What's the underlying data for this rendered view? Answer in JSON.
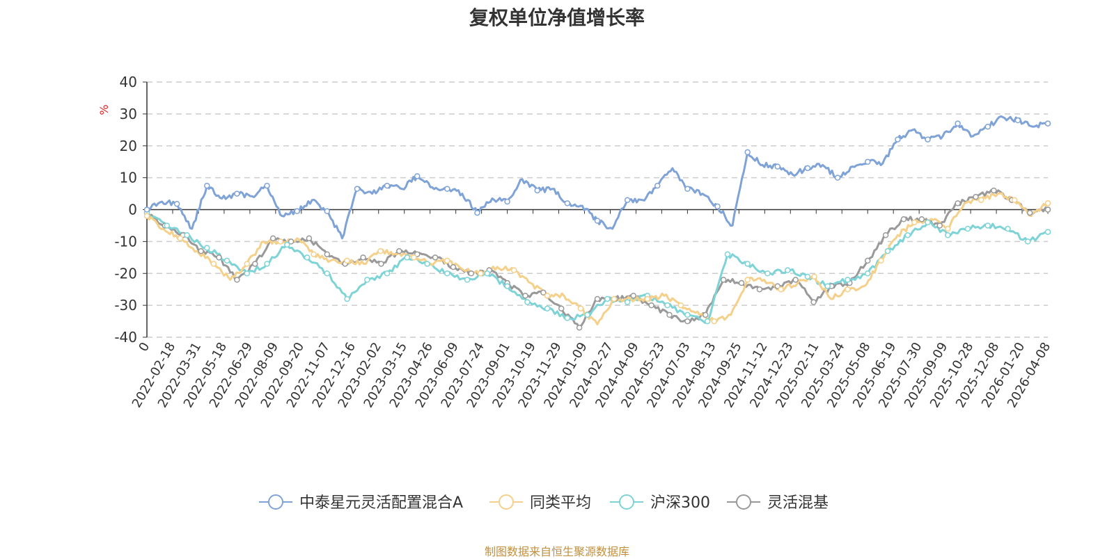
{
  "chart_data": {
    "type": "line",
    "title": "复权单位净值增长率",
    "ylabel": "%",
    "xlabel": "",
    "ylim": [
      -40,
      40
    ],
    "yticks": [
      40,
      30,
      20,
      10,
      0,
      -10,
      -20,
      -30,
      -40
    ],
    "x_tick_labels": [
      "0",
      "2022-02-18",
      "2022-03-31",
      "2022-05-18",
      "2022-06-29",
      "2022-08-09",
      "2022-09-20",
      "2022-11-07",
      "2022-12-16",
      "2023-02-02",
      "2023-03-15",
      "2023-04-26",
      "2023-06-09",
      "2023-07-24",
      "2023-09-01",
      "2023-10-19",
      "2023-11-29",
      "2024-01-09",
      "2024-02-27",
      "2024-04-09",
      "2024-05-23",
      "2024-07-03",
      "2024-08-13",
      "2024-09-25",
      "2024-11-12",
      "2024-12-23",
      "2025-02-11",
      "2025-03-24",
      "2025-05-08",
      "2025-06-19",
      "2025-07-30",
      "2025-09-09",
      "2025-10-28",
      "2025-12-08",
      "2026-01-20",
      "2026-04-08"
    ],
    "grid": true,
    "legend_position": "bottom",
    "series": [
      {
        "name": "中泰星元灵活配置混合A",
        "color": "#7fa3d6",
        "values": [
          0,
          2.5,
          1.8,
          -6,
          7.5,
          3.5,
          5,
          4.2,
          7.5,
          -2,
          -0.5,
          3,
          -0.5,
          -9,
          6.5,
          5,
          7.5,
          6.5,
          10.5,
          7,
          6.5,
          5,
          -1,
          3.5,
          2.5,
          9.5,
          6,
          6.5,
          2,
          1.2,
          -3.5,
          -6,
          3,
          3,
          7.5,
          13,
          6.5,
          5,
          1,
          -5,
          18,
          14,
          13.5,
          11,
          13,
          14,
          10,
          13.5,
          15,
          14.5,
          22,
          25,
          22,
          23,
          27,
          23,
          26,
          29,
          28,
          26,
          27
        ]
      },
      {
        "name": "同类平均",
        "color": "#f5d08a",
        "values": [
          -2,
          -6,
          -9,
          -13,
          -17,
          -22,
          -17,
          -10,
          -10,
          -9,
          -14,
          -16,
          -16,
          -17,
          -13,
          -14,
          -15,
          -17,
          -16,
          -19,
          -20,
          -18,
          -19,
          -23,
          -27,
          -27,
          -31,
          -36,
          -28,
          -28,
          -28,
          -27,
          -30,
          -32,
          -35,
          -33,
          -22,
          -22,
          -25,
          -23,
          -21,
          -28,
          -25,
          -24,
          -16,
          -8,
          -4,
          -3,
          -6,
          2,
          3,
          5,
          3,
          -2,
          2
        ]
      },
      {
        "name": "沪深300",
        "color": "#7dd3d6",
        "values": [
          -1,
          -5,
          -8,
          -12,
          -16,
          -20,
          -17,
          -11,
          -15,
          -20,
          -28,
          -22,
          -20,
          -15,
          -17,
          -20,
          -22,
          -20,
          -24,
          -29,
          -31,
          -34,
          -33,
          -28,
          -29,
          -27,
          -30,
          -33,
          -35,
          -14,
          -17,
          -20,
          -19,
          -21,
          -24,
          -22,
          -20,
          -13,
          -8,
          -4,
          -8,
          -6,
          -5,
          -6,
          -10,
          -7
        ]
      },
      {
        "name": "灵活混基",
        "color": "#999999",
        "values": [
          -1,
          -5,
          -8,
          -13,
          -15,
          -22,
          -17,
          -9,
          -10,
          -9,
          -14,
          -17,
          -15,
          -17,
          -13,
          -14,
          -15,
          -18,
          -20,
          -19,
          -23,
          -27,
          -26,
          -31,
          -37,
          -28,
          -28,
          -27,
          -30,
          -33,
          -35,
          -33,
          -22,
          -23,
          -25,
          -24,
          -22,
          -29,
          -24,
          -23,
          -16,
          -8,
          -3,
          -3,
          -5,
          2,
          4,
          6,
          3,
          -1,
          0
        ]
      }
    ]
  },
  "source_note": "制图数据来自恒生聚源数据库"
}
